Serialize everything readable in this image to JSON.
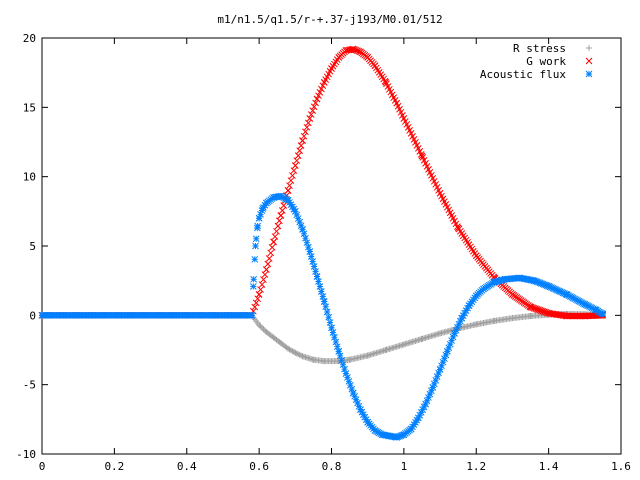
{
  "chart_data": {
    "type": "scatter",
    "title": "m1/n1.5/q1.5/r-+.37-j193/M0.01/512",
    "xlabel": "",
    "ylabel": "",
    "xlim": [
      0,
      1.6
    ],
    "ylim": [
      -10,
      20
    ],
    "xticks": [
      "0",
      "0.2",
      "0.4",
      "0.6",
      "0.8",
      "1",
      "1.2",
      "1.4",
      "1.6"
    ],
    "yticks": [
      "-10",
      "-5",
      "0",
      "5",
      "10",
      "15",
      "20"
    ],
    "grid": false,
    "legend_position": "top-right",
    "series": [
      {
        "name": "R stress",
        "marker": "+",
        "color": "#a0a0a0",
        "points": [
          [
            0.0,
            0
          ],
          [
            0.58,
            0
          ],
          [
            0.6,
            -0.7
          ],
          [
            0.62,
            -1.2
          ],
          [
            0.64,
            -1.6
          ],
          [
            0.66,
            -2.0
          ],
          [
            0.68,
            -2.4
          ],
          [
            0.7,
            -2.7
          ],
          [
            0.72,
            -2.95
          ],
          [
            0.75,
            -3.2
          ],
          [
            0.78,
            -3.3
          ],
          [
            0.82,
            -3.3
          ],
          [
            0.85,
            -3.2
          ],
          [
            0.9,
            -2.9
          ],
          [
            0.95,
            -2.5
          ],
          [
            1.0,
            -2.1
          ],
          [
            1.05,
            -1.7
          ],
          [
            1.1,
            -1.3
          ],
          [
            1.15,
            -0.95
          ],
          [
            1.2,
            -0.65
          ],
          [
            1.25,
            -0.4
          ],
          [
            1.3,
            -0.2
          ],
          [
            1.35,
            -0.05
          ],
          [
            1.4,
            0.05
          ],
          [
            1.45,
            0.1
          ],
          [
            1.5,
            0.08
          ],
          [
            1.55,
            0
          ]
        ]
      },
      {
        "name": "G work",
        "marker": "x",
        "color": "#ff0000",
        "points": [
          [
            0.0,
            0
          ],
          [
            0.58,
            0
          ],
          [
            0.6,
            1.5
          ],
          [
            0.62,
            3.3
          ],
          [
            0.64,
            5.3
          ],
          [
            0.66,
            7.2
          ],
          [
            0.68,
            9.0
          ],
          [
            0.7,
            10.8
          ],
          [
            0.72,
            12.6
          ],
          [
            0.74,
            14.2
          ],
          [
            0.76,
            15.6
          ],
          [
            0.78,
            16.8
          ],
          [
            0.8,
            17.8
          ],
          [
            0.82,
            18.6
          ],
          [
            0.84,
            19.1
          ],
          [
            0.86,
            19.2
          ],
          [
            0.88,
            19.0
          ],
          [
            0.9,
            18.6
          ],
          [
            0.92,
            18.0
          ],
          [
            0.95,
            16.8
          ],
          [
            0.98,
            15.3
          ],
          [
            1.0,
            14.2
          ],
          [
            1.05,
            11.5
          ],
          [
            1.1,
            8.8
          ],
          [
            1.15,
            6.3
          ],
          [
            1.2,
            4.3
          ],
          [
            1.25,
            2.7
          ],
          [
            1.3,
            1.5
          ],
          [
            1.35,
            0.6
          ],
          [
            1.4,
            0.15
          ],
          [
            1.45,
            -0.05
          ],
          [
            1.5,
            -0.05
          ],
          [
            1.55,
            0
          ]
        ]
      },
      {
        "name": "Acoustic flux",
        "marker": "*",
        "color": "#0080ff",
        "points": [
          [
            0.0,
            0
          ],
          [
            0.58,
            0
          ],
          [
            0.585,
            2.6
          ],
          [
            0.59,
            5.0
          ],
          [
            0.595,
            6.3
          ],
          [
            0.6,
            7.0
          ],
          [
            0.61,
            7.7
          ],
          [
            0.62,
            8.1
          ],
          [
            0.64,
            8.5
          ],
          [
            0.66,
            8.6
          ],
          [
            0.68,
            8.3
          ],
          [
            0.7,
            7.5
          ],
          [
            0.72,
            6.2
          ],
          [
            0.74,
            4.6
          ],
          [
            0.76,
            2.8
          ],
          [
            0.78,
            1.0
          ],
          [
            0.8,
            -0.9
          ],
          [
            0.82,
            -2.6
          ],
          [
            0.84,
            -4.2
          ],
          [
            0.86,
            -5.6
          ],
          [
            0.88,
            -6.8
          ],
          [
            0.9,
            -7.7
          ],
          [
            0.92,
            -8.3
          ],
          [
            0.94,
            -8.6
          ],
          [
            0.96,
            -8.7
          ],
          [
            0.98,
            -8.8
          ],
          [
            1.0,
            -8.6
          ],
          [
            1.02,
            -8.2
          ],
          [
            1.04,
            -7.4
          ],
          [
            1.06,
            -6.4
          ],
          [
            1.08,
            -5.2
          ],
          [
            1.1,
            -3.9
          ],
          [
            1.12,
            -2.6
          ],
          [
            1.14,
            -1.3
          ],
          [
            1.16,
            -0.2
          ],
          [
            1.18,
            0.7
          ],
          [
            1.2,
            1.4
          ],
          [
            1.22,
            1.9
          ],
          [
            1.25,
            2.4
          ],
          [
            1.28,
            2.6
          ],
          [
            1.32,
            2.7
          ],
          [
            1.36,
            2.5
          ],
          [
            1.4,
            2.1
          ],
          [
            1.45,
            1.5
          ],
          [
            1.5,
            0.8
          ],
          [
            1.53,
            0.4
          ],
          [
            1.55,
            0.1
          ]
        ]
      }
    ]
  }
}
